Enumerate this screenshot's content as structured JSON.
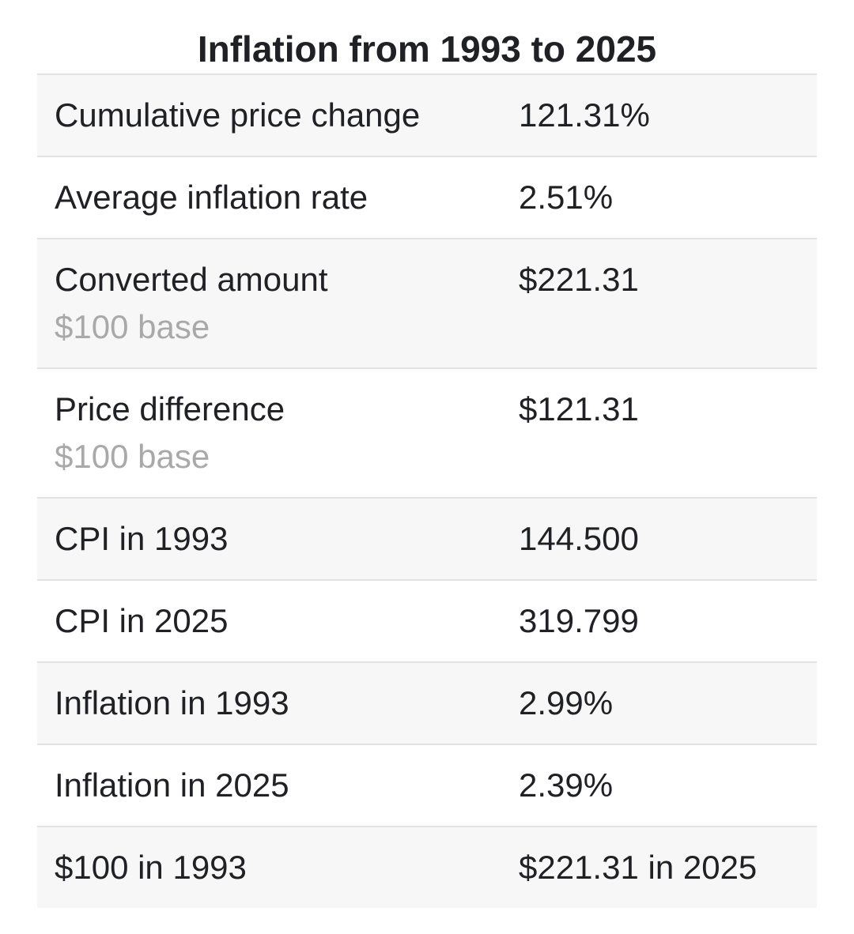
{
  "title": "Inflation from 1993 to 2025",
  "colors": {
    "row_alt_bg": "#f7f7f7",
    "row_border": "#e2e2e2",
    "text": "#202124",
    "sublabel_text": "#a9a9a9",
    "page_bg": "#ffffff"
  },
  "table": {
    "rows": [
      {
        "label": "Cumulative price change",
        "sublabel": "",
        "value": "121.31%"
      },
      {
        "label": "Average inflation rate",
        "sublabel": "",
        "value": "2.51%"
      },
      {
        "label": "Converted amount",
        "sublabel": "$100 base",
        "value": "$221.31"
      },
      {
        "label": "Price difference",
        "sublabel": "$100 base",
        "value": "$121.31"
      },
      {
        "label": "CPI in 1993",
        "sublabel": "",
        "value": "144.500"
      },
      {
        "label": "CPI in 2025",
        "sublabel": "",
        "value": "319.799"
      },
      {
        "label": "Inflation in 1993",
        "sublabel": "",
        "value": "2.99%"
      },
      {
        "label": "Inflation in 2025",
        "sublabel": "",
        "value": "2.39%"
      },
      {
        "label": "$100 in 1993",
        "sublabel": "",
        "value": "$221.31 in 2025"
      }
    ]
  }
}
